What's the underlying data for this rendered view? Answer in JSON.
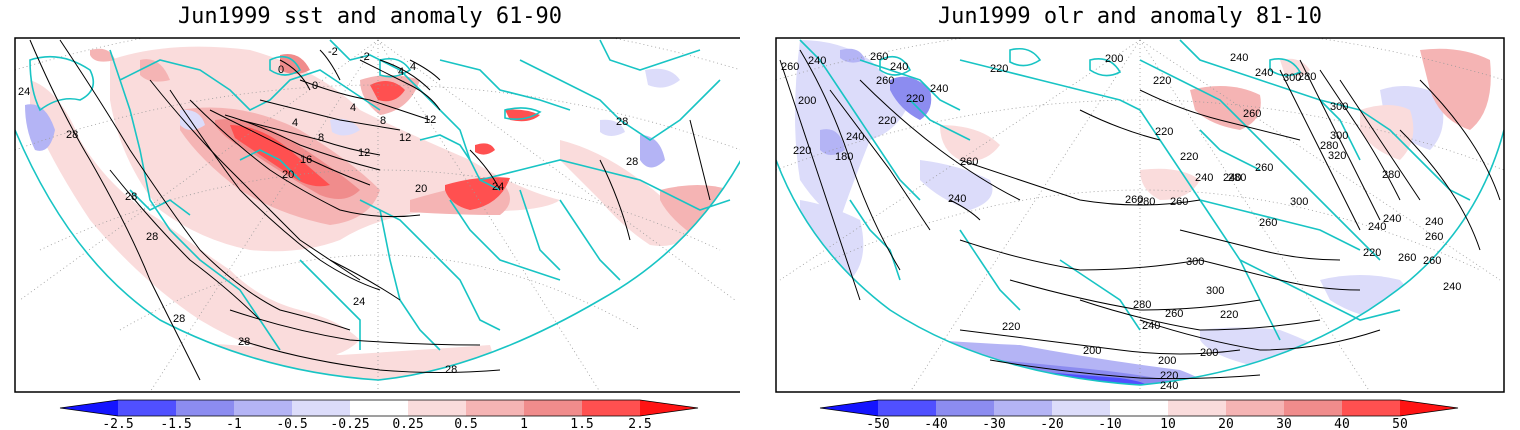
{
  "panels": [
    {
      "title": "Jun1999 sst and anomaly 61-90",
      "colorbar": {
        "labels": [
          "-2.5",
          "-1.5",
          "-1",
          "-0.5",
          "-0.25",
          "0.25",
          "0.5",
          "1",
          "1.5",
          "2.5"
        ],
        "colors": [
          "#1414ff",
          "#5050ff",
          "#8c8cf0",
          "#b4b4f5",
          "#dcdcfa",
          "#ffffff",
          "#fadcdc",
          "#f5b4b4",
          "#f08c8c",
          "#ff5050",
          "#ff1414"
        ]
      },
      "contour_labels": [
        "24",
        "28",
        "28",
        "28",
        "28",
        "24",
        "28",
        "28",
        "20",
        "16",
        "12",
        "8",
        "4",
        "4",
        "0",
        "0",
        "4",
        "8",
        "12",
        "12",
        "20",
        "24",
        "28",
        "28",
        "-2",
        "-2",
        "4"
      ]
    },
    {
      "title": "Jun1999 olr and anomaly 81-10",
      "colorbar": {
        "labels": [
          "-50",
          "-40",
          "-30",
          "-20",
          "-10",
          "10",
          "20",
          "30",
          "40",
          "50"
        ],
        "colors": [
          "#1414ff",
          "#5050ff",
          "#8c8cf0",
          "#b4b4f5",
          "#dcdcfa",
          "#ffffff",
          "#fadcdc",
          "#f5b4b4",
          "#f08c8c",
          "#ff5050",
          "#ff1414"
        ]
      },
      "contour_labels": [
        "260",
        "240",
        "200",
        "220",
        "180",
        "240",
        "220",
        "240",
        "260",
        "240",
        "220",
        "220",
        "260",
        "200",
        "240",
        "220",
        "260",
        "240",
        "220",
        "220",
        "240",
        "260",
        "240",
        "300",
        "280",
        "300",
        "280",
        "300",
        "320",
        "260",
        "240",
        "280",
        "260",
        "280",
        "300",
        "260",
        "280",
        "240",
        "260",
        "260",
        "300",
        "300",
        "220",
        "240",
        "240",
        "240",
        "260",
        "260",
        "280",
        "240",
        "260",
        "220",
        "200",
        "220",
        "200",
        "200",
        "240",
        "220"
      ]
    }
  ],
  "map_features": {
    "coastline_color": "#18c4c4",
    "contour_color": "#000000"
  }
}
